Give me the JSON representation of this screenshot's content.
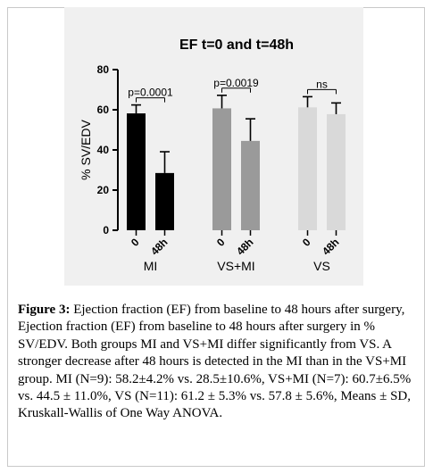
{
  "chart_data": {
    "type": "bar",
    "title": "EF t=0 and t=48h",
    "ylabel": "% SV/EDV",
    "ylim": [
      0,
      80
    ],
    "yticks": [
      0,
      20,
      40,
      60,
      80
    ],
    "groups": [
      {
        "name": "MI",
        "color": "#000000",
        "bars": [
          {
            "label": "0",
            "value": 58.2,
            "sd": 4.2
          },
          {
            "label": "48h",
            "value": 28.5,
            "sd": 10.6
          }
        ],
        "annotation": "p=0.0001"
      },
      {
        "name": "VS+MI",
        "color": "#9a9a9a",
        "bars": [
          {
            "label": "0",
            "value": 60.7,
            "sd": 6.5
          },
          {
            "label": "48h",
            "value": 44.5,
            "sd": 11.0
          }
        ],
        "annotation": "p=0.0019"
      },
      {
        "name": "VS",
        "color": "#d9d9d9",
        "bars": [
          {
            "label": "0",
            "value": 61.2,
            "sd": 5.3
          },
          {
            "label": "48h",
            "value": 57.8,
            "sd": 5.6
          }
        ],
        "annotation": "ns"
      }
    ]
  },
  "caption": {
    "label": "Figure 3:",
    "text": " Ejection fraction (EF) from baseline to 48 hours after surgery, Ejection fraction (EF) from baseline to 48 hours after surgery in % SV/EDV. Both groups MI and VS+MI differ significantly from VS. A stronger decrease after 48 hours is detected in the MI than in the VS+MI group. MI (N=9): 58.2±4.2% vs. 28.5±10.6%, VS+MI (N=7): 60.7±6.5% vs. 44.5 ± 11.0%, VS (N=11): 61.2 ± 5.3% vs. 57.8 ± 5.6%, Means ± SD, Kruskall-Wallis of One Way ANOVA."
  }
}
